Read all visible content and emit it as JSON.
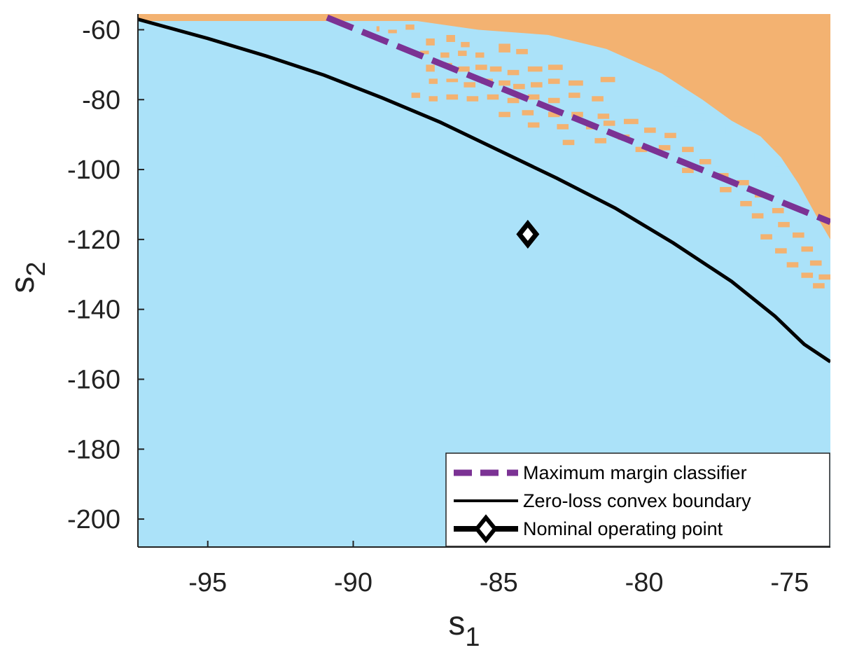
{
  "chart_data": {
    "type": "scatter",
    "title": "",
    "xlabel": "s",
    "xlabel_sub": "1",
    "ylabel": "s",
    "ylabel_sub": "2",
    "xlim": [
      -97.4,
      -73.6
    ],
    "ylim": [
      -208,
      -55.5
    ],
    "xticks": [
      -95,
      -90,
      -85,
      -80,
      -75
    ],
    "yticks": [
      -60,
      -80,
      -100,
      -120,
      -140,
      -160,
      -180,
      -200
    ],
    "xtick_labels": [
      "-95",
      "-90",
      "-85",
      "-80",
      "-75"
    ],
    "ytick_labels": [
      "-60",
      "-80",
      "-100",
      "-120",
      "-140",
      "-160",
      "-180",
      "-200"
    ],
    "grid": false,
    "legend_position": "bottom-right",
    "region_colors": {
      "feasible": "#abe2f9",
      "infeasible": "#f3b271"
    },
    "regions": [
      {
        "color": "infeasible",
        "boundary": [
          [
            -97.4,
            -57.5
          ],
          [
            -87.8,
            -57.5
          ],
          [
            -85.7,
            -60
          ],
          [
            -83.3,
            -61.5
          ],
          [
            -81.3,
            -65.5
          ],
          [
            -79.4,
            -72.5
          ],
          [
            -78.0,
            -80
          ],
          [
            -77.0,
            -86
          ],
          [
            -76.0,
            -90.5
          ],
          [
            -75.3,
            -96.5
          ],
          [
            -74.7,
            -104
          ],
          [
            -74.1,
            -113
          ],
          [
            -73.6,
            -120
          ]
        ]
      }
    ],
    "infeasible_patches": [
      [
        -89.2,
        -59,
        -89.1,
        -60.5
      ],
      [
        -88.8,
        -60,
        -88.5,
        -61
      ],
      [
        -88.2,
        -58.5,
        -87.9,
        -60
      ],
      [
        -87.5,
        -62.5,
        -87.2,
        -64.5
      ],
      [
        -86.8,
        -61.5,
        -86.5,
        -63.5
      ],
      [
        -86.3,
        -63.5,
        -86.0,
        -65
      ],
      [
        -87.7,
        -66,
        -87.4,
        -67
      ],
      [
        -87.0,
        -66.5,
        -86.7,
        -68
      ],
      [
        -86.4,
        -66,
        -86.1,
        -67.5
      ],
      [
        -85.8,
        -66.5,
        -85.5,
        -68
      ],
      [
        -85.0,
        -64,
        -84.6,
        -66.5
      ],
      [
        -84.4,
        -65.5,
        -84.0,
        -67
      ],
      [
        -87.5,
        -70,
        -87.2,
        -72
      ],
      [
        -86.9,
        -69.5,
        -86.6,
        -71
      ],
      [
        -86.4,
        -70.5,
        -86.0,
        -72
      ],
      [
        -85.8,
        -70,
        -85.4,
        -71.5
      ],
      [
        -85.3,
        -70.5,
        -84.9,
        -72
      ],
      [
        -84.7,
        -71.5,
        -84.3,
        -73
      ],
      [
        -84.0,
        -70.5,
        -83.5,
        -72
      ],
      [
        -83.3,
        -70,
        -82.8,
        -71.5
      ],
      [
        -87.4,
        -74,
        -87.1,
        -75.5
      ],
      [
        -86.8,
        -74,
        -86.4,
        -75
      ],
      [
        -86.2,
        -75,
        -85.8,
        -76.5
      ],
      [
        -85.6,
        -74,
        -85.2,
        -75.5
      ],
      [
        -85.0,
        -74.5,
        -84.6,
        -76
      ],
      [
        -84.5,
        -75.5,
        -84.1,
        -77
      ],
      [
        -83.9,
        -75,
        -83.5,
        -76.5
      ],
      [
        -83.3,
        -74,
        -82.9,
        -75.5
      ],
      [
        -82.6,
        -74.5,
        -82.1,
        -76
      ],
      [
        -81.5,
        -73.5,
        -81.0,
        -75
      ],
      [
        -88.0,
        -78,
        -87.7,
        -79.5
      ],
      [
        -87.4,
        -79,
        -87.1,
        -80.5
      ],
      [
        -86.8,
        -78.5,
        -86.4,
        -80
      ],
      [
        -86.1,
        -79,
        -85.7,
        -80.5
      ],
      [
        -85.4,
        -78.5,
        -85.0,
        -80
      ],
      [
        -84.7,
        -79.5,
        -84.3,
        -81
      ],
      [
        -84.0,
        -78.5,
        -83.6,
        -80
      ],
      [
        -83.3,
        -79.5,
        -82.9,
        -81
      ],
      [
        -82.6,
        -78,
        -82.2,
        -79.5
      ],
      [
        -81.8,
        -79,
        -81.4,
        -80.5
      ],
      [
        -85.0,
        -83.5,
        -84.6,
        -85
      ],
      [
        -84.2,
        -83,
        -83.8,
        -84.5
      ],
      [
        -83.3,
        -83.5,
        -82.9,
        -85
      ],
      [
        -82.5,
        -83.5,
        -82.1,
        -85
      ],
      [
        -81.6,
        -84,
        -81.2,
        -85.5
      ],
      [
        -81.4,
        -86,
        -81.0,
        -87.5
      ],
      [
        -80.7,
        -85.5,
        -80.2,
        -87
      ],
      [
        -82.0,
        -87,
        -81.6,
        -88.5
      ],
      [
        -83.0,
        -87,
        -82.6,
        -88.5
      ],
      [
        -84.0,
        -86.5,
        -83.6,
        -88
      ],
      [
        -80.0,
        -88,
        -79.6,
        -89.5
      ],
      [
        -79.3,
        -89.5,
        -78.9,
        -91
      ],
      [
        -80.9,
        -90,
        -80.5,
        -91.5
      ],
      [
        -81.7,
        -91,
        -81.3,
        -92.5
      ],
      [
        -82.8,
        -91.5,
        -82.4,
        -93
      ],
      [
        -78.7,
        -93.5,
        -78.3,
        -95
      ],
      [
        -79.5,
        -93,
        -79.1,
        -94.5
      ],
      [
        -80.3,
        -93.5,
        -79.9,
        -95
      ],
      [
        -78.1,
        -97,
        -77.7,
        -98.5
      ],
      [
        -78.7,
        -99.5,
        -78.3,
        -101
      ],
      [
        -77.5,
        -101,
        -77.1,
        -102.5
      ],
      [
        -76.8,
        -103,
        -76.4,
        -104.5
      ],
      [
        -77.4,
        -105,
        -77.0,
        -106.5
      ],
      [
        -76.2,
        -106.5,
        -75.8,
        -108
      ],
      [
        -76.7,
        -109,
        -76.3,
        -110.5
      ],
      [
        -75.6,
        -111,
        -75.2,
        -112.5
      ],
      [
        -76.3,
        -112.5,
        -75.9,
        -114
      ],
      [
        -75.4,
        -115,
        -75.0,
        -116.5
      ],
      [
        -74.9,
        -118,
        -74.5,
        -119.5
      ],
      [
        -76.0,
        -118.5,
        -75.6,
        -120
      ],
      [
        -74.6,
        -122,
        -74.2,
        -123.5
      ],
      [
        -75.5,
        -122.5,
        -75.1,
        -124
      ],
      [
        -74.3,
        -126,
        -73.9,
        -127.5
      ],
      [
        -75.1,
        -126.5,
        -74.7,
        -128
      ],
      [
        -74.0,
        -130,
        -73.6,
        -131.5
      ],
      [
        -74.6,
        -129.5,
        -74.2,
        -131
      ],
      [
        -74.2,
        -132.5,
        -73.8,
        -134
      ]
    ],
    "feasible_holes": [
      [
        -79.0,
        -80.5,
        -78.5,
        -82
      ],
      [
        -78.3,
        -84,
        -77.9,
        -86
      ],
      [
        -77.6,
        -88,
        -77.2,
        -90
      ],
      [
        -76.9,
        -91,
        -76.5,
        -93
      ],
      [
        -76.2,
        -95,
        -75.8,
        -97
      ],
      [
        -75.5,
        -99,
        -75.1,
        -101
      ]
    ],
    "series": [
      {
        "name": "Maximum margin classifier",
        "style": "dashed",
        "color": "#7b3294",
        "x": [
          -90.9,
          -73.6
        ],
        "y": [
          -56.5,
          -115
        ]
      },
      {
        "name": "Zero-loss convex boundary",
        "style": "solid",
        "color": "#000000",
        "x": [
          -97.4,
          -95,
          -93,
          -91,
          -89,
          -87,
          -85,
          -83,
          -81,
          -79,
          -77,
          -75.5,
          -74.5,
          -73.6
        ],
        "y": [
          -57,
          -62.5,
          -67.5,
          -73,
          -79.5,
          -86.5,
          -94.5,
          -102.5,
          -111,
          -121,
          -132,
          -142,
          -150,
          -155
        ]
      },
      {
        "name": "Nominal operating point",
        "style": "marker",
        "marker": "diamond",
        "color": "#000000",
        "x": [
          -84.0
        ],
        "y": [
          -118.5
        ]
      }
    ]
  }
}
